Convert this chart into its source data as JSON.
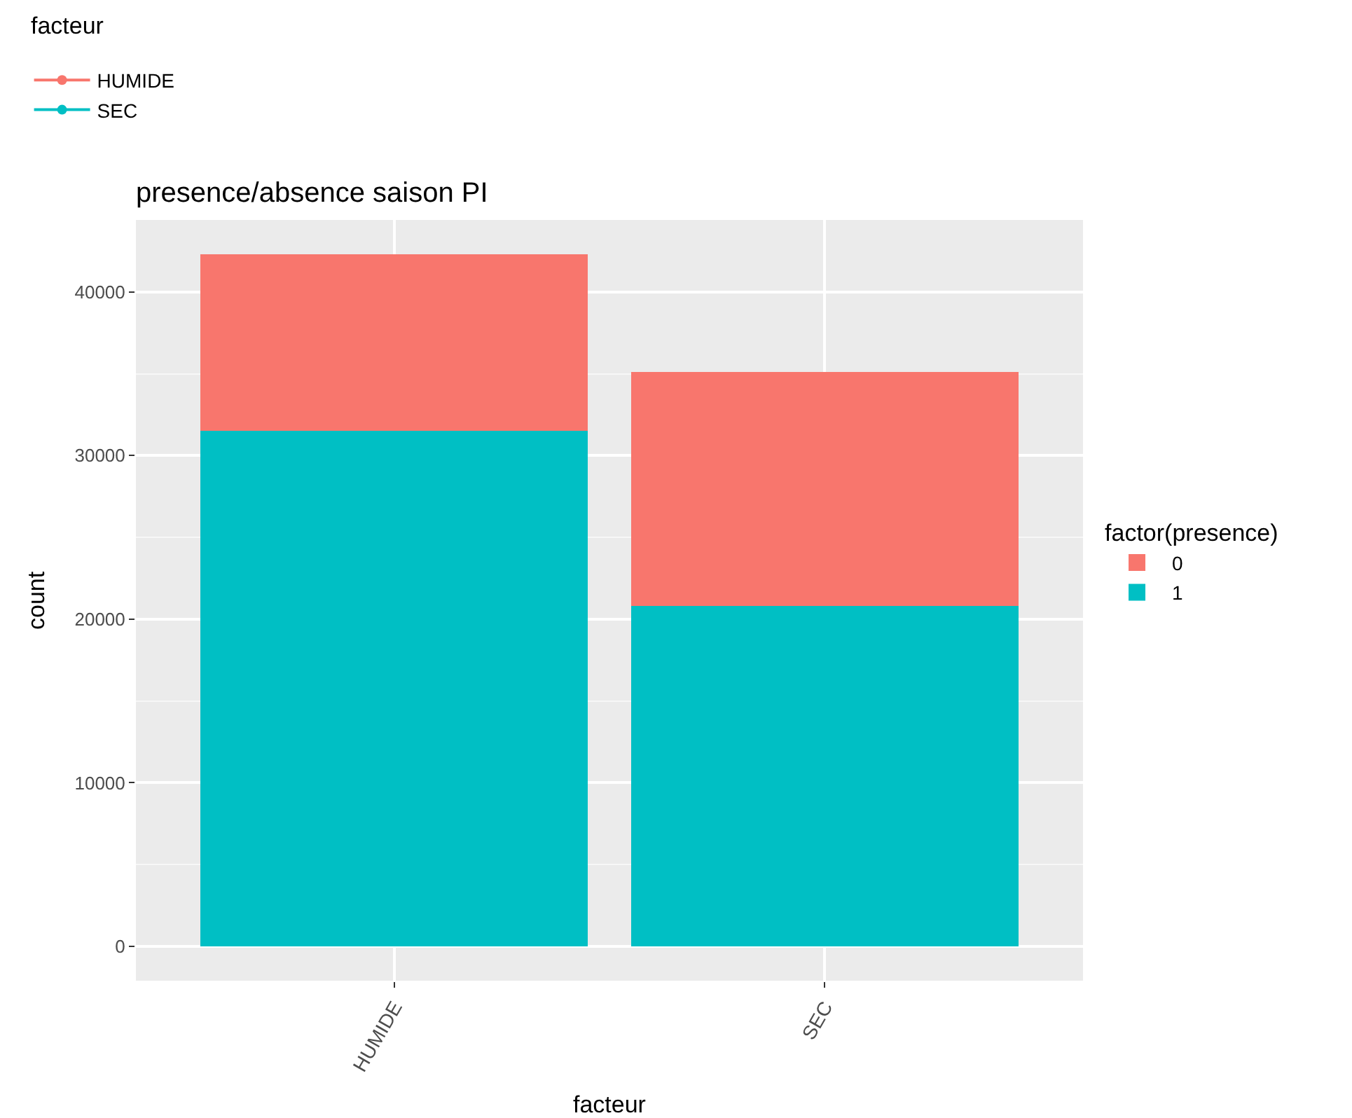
{
  "chart_data": {
    "type": "bar",
    "title": "presence/absence saison PI",
    "xlabel": "facteur",
    "ylabel": "count",
    "legend_title": "factor(presence)",
    "stacked": true,
    "categories": [
      "HUMIDE",
      "SEC"
    ],
    "series": [
      {
        "name": "1",
        "color": "#00bfc4",
        "values": [
          31500,
          20800
        ]
      },
      {
        "name": "0",
        "color": "#f8766d",
        "values": [
          10800,
          14300
        ]
      },
      {
        "type": "line",
        "name": "HUMIDE",
        "color": "#f8766d",
        "values": [
          null,
          null
        ]
      },
      {
        "type": "line",
        "name": "SEC",
        "color": "#00bfc4",
        "values": [
          null,
          null
        ]
      }
    ],
    "annotations": [
      "facteur"
    ],
    "marker": "circle",
    "ylim": [
      -2100,
      44400
    ],
    "yticks": [
      0,
      10000,
      20000,
      30000,
      40000
    ],
    "grid": true,
    "legend": "right"
  }
}
